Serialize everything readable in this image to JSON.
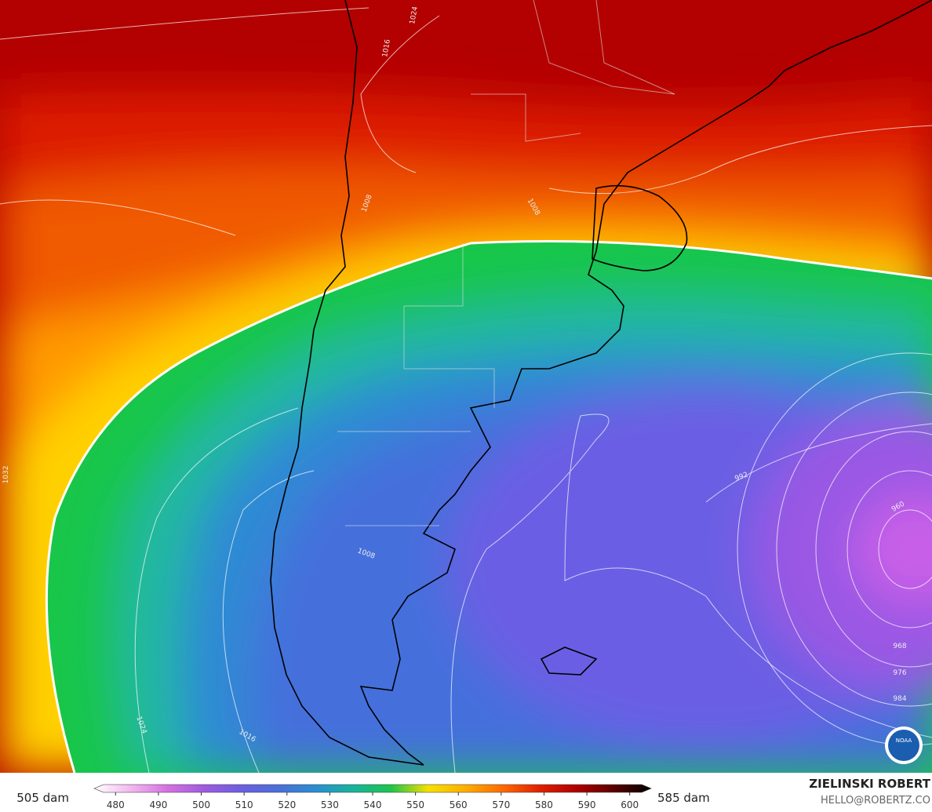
{
  "map": {
    "isobar_labels": [
      1024,
      1016,
      1008,
      1008,
      1032,
      1008,
      992,
      960,
      968,
      976,
      984,
      1024,
      1016
    ],
    "colorbar": {
      "min_label": "505 dam",
      "max_label": "585 dam",
      "range": [
        475,
        605
      ],
      "ticks": [
        480,
        490,
        500,
        510,
        520,
        530,
        540,
        550,
        560,
        570,
        580,
        590,
        600
      ],
      "colors": [
        "#ffffff",
        "#f3b6f0",
        "#d46fe0",
        "#9d5be0",
        "#6b5fe0",
        "#4a6fd8",
        "#2a8fd0",
        "#19b49a",
        "#1ec44a",
        "#f7e000",
        "#ffae00",
        "#ff6a00",
        "#e02000",
        "#b00000",
        "#5a0000",
        "#000000"
      ]
    },
    "credit": {
      "author": "ZIELINSKI ROBERT",
      "contact": "HELLO@ROBERTZ.CO",
      "logo": "NOAA"
    }
  }
}
